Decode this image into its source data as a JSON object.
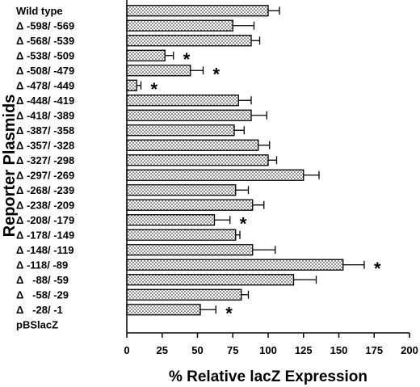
{
  "chart_data": {
    "type": "bar",
    "orientation": "horizontal",
    "xlabel": "% Relative lacZ Expression",
    "ylabel": "Reporter Plasmids",
    "xlim": [
      0,
      200
    ],
    "xticks": [
      "0",
      "25",
      "50",
      "75",
      "100",
      "125",
      "150",
      "175",
      "200"
    ],
    "grid": false,
    "significance_marker": "*",
    "categories": [
      "Wild type",
      "Δ -598/ -569",
      "Δ -568/ -539",
      "Δ -538/ -509",
      "Δ -508/ -479",
      "Δ -478/ -449",
      "Δ -448/ -419",
      "Δ -418/ -389",
      "Δ -387/ -358",
      "Δ -357/ -328",
      "Δ -327/ -298",
      "Δ -297/ -269",
      "Δ -268/ -239",
      "Δ -238/ -209",
      "Δ -208/ -179",
      "Δ -178/ -149",
      "Δ -148/ -119",
      "Δ -118/ -89",
      "Δ   -88/ -59",
      "Δ   -58/ -29",
      "Δ   -28/ -1",
      "pBSlacZ"
    ],
    "values": [
      100,
      75,
      88,
      27,
      45,
      7,
      79,
      88,
      76,
      93,
      100,
      125,
      77,
      89,
      62,
      77,
      89,
      153,
      118,
      81,
      52,
      0
    ],
    "errors": [
      8,
      15,
      6,
      6,
      9,
      3,
      9,
      11,
      7,
      8,
      6,
      11,
      9,
      8,
      11,
      3,
      16,
      15,
      16,
      5,
      11,
      0
    ],
    "significant": [
      false,
      false,
      false,
      true,
      true,
      true,
      false,
      false,
      false,
      false,
      false,
      false,
      false,
      false,
      true,
      false,
      false,
      true,
      false,
      false,
      true,
      false
    ]
  }
}
